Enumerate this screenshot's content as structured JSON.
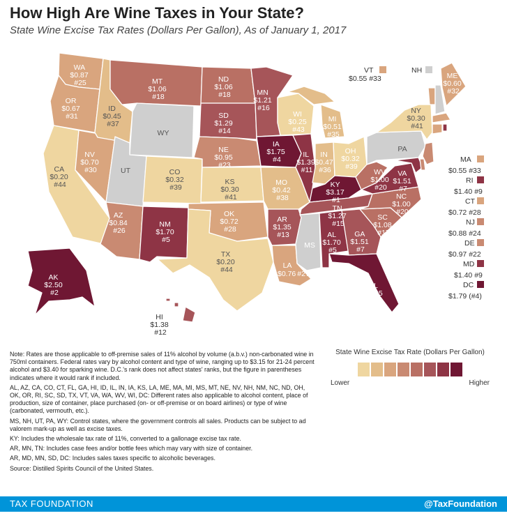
{
  "title": "How High Are Wine Taxes in Your State?",
  "subtitle": "State Wine Excise Tax Rates (Dollars Per Gallon), As of January 1, 2017",
  "colors": {
    "c1": "#efd6a0",
    "c2": "#e3bd8a",
    "c3": "#d9a57e",
    "c4": "#c98a72",
    "c5": "#b97064",
    "c6": "#a65559",
    "c7": "#8e3445",
    "c8": "#6f1733",
    "control": "#cfcfcf"
  },
  "states": {
    "WA": {
      "abbr": "WA",
      "value": "$0.87",
      "rank": "#25"
    },
    "OR": {
      "abbr": "OR",
      "value": "$0.67",
      "rank": "#31"
    },
    "CA": {
      "abbr": "CA",
      "value": "$0.20",
      "rank": "#44"
    },
    "NV": {
      "abbr": "NV",
      "value": "$0.70",
      "rank": "#30"
    },
    "ID": {
      "abbr": "ID",
      "value": "$0.45",
      "rank": "#37"
    },
    "MT": {
      "abbr": "MT",
      "value": "$1.06",
      "rank": "#18"
    },
    "WY": {
      "abbr": "WY"
    },
    "UT": {
      "abbr": "UT"
    },
    "AZ": {
      "abbr": "AZ",
      "value": "$0.84",
      "rank": "#26"
    },
    "CO": {
      "abbr": "CO",
      "value": "$0.32",
      "rank": "#39"
    },
    "NM": {
      "abbr": "NM",
      "value": "$1.70",
      "rank": "#5"
    },
    "ND": {
      "abbr": "ND",
      "value": "$1.06",
      "rank": "#18"
    },
    "SD": {
      "abbr": "SD",
      "value": "$1.29",
      "rank": "#14"
    },
    "NE": {
      "abbr": "NE",
      "value": "$0.95",
      "rank": "#23"
    },
    "KS": {
      "abbr": "KS",
      "value": "$0.30",
      "rank": "#41"
    },
    "OK": {
      "abbr": "OK",
      "value": "$0.72",
      "rank": "#28"
    },
    "TX": {
      "abbr": "TX",
      "value": "$0.20",
      "rank": "#44"
    },
    "MN": {
      "abbr": "MN",
      "value": "$1.21",
      "rank": "#16"
    },
    "IA": {
      "abbr": "IA",
      "value": "$1.75",
      "rank": "#4"
    },
    "MO": {
      "abbr": "MO",
      "value": "$0.42",
      "rank": "#38"
    },
    "AR": {
      "abbr": "AR",
      "value": "$1.35",
      "rank": "#13"
    },
    "LA": {
      "abbr": "LA",
      "value": "$0.76",
      "rank": "#27"
    },
    "WI": {
      "abbr": "WI",
      "value": "$0.25",
      "rank": "#43"
    },
    "IL": {
      "abbr": "IL",
      "value": "$1.39",
      "rank": "#11"
    },
    "MI": {
      "abbr": "MI",
      "value": "$0.51",
      "rank": "#35"
    },
    "IN": {
      "abbr": "IN",
      "value": "$0.47",
      "rank": "#36"
    },
    "OH": {
      "abbr": "OH",
      "value": "$0.32",
      "rank": "#39"
    },
    "KY": {
      "abbr": "KY",
      "value": "$3.17",
      "rank": "#1"
    },
    "TN": {
      "abbr": "TN",
      "value": "$1.27",
      "rank": "#15"
    },
    "MS": {
      "abbr": "MS"
    },
    "AL": {
      "abbr": "AL",
      "value": "$1.70",
      "rank": "#5"
    },
    "GA": {
      "abbr": "GA",
      "value": "$1.51",
      "rank": "#7"
    },
    "FL": {
      "abbr": "FL",
      "value": "$2.25",
      "rank": "#3"
    },
    "SC": {
      "abbr": "SC",
      "value": "$1.08",
      "rank": "#17"
    },
    "NC": {
      "abbr": "NC",
      "value": "$1.00",
      "rank": "#20"
    },
    "VA": {
      "abbr": "VA",
      "value": "$1.51",
      "rank": "#7"
    },
    "WV": {
      "abbr": "WV",
      "value": "$1.00",
      "rank": "#20"
    },
    "PA": {
      "abbr": "PA"
    },
    "NY": {
      "abbr": "NY",
      "value": "$0.30",
      "rank": "#41"
    },
    "ME": {
      "abbr": "ME",
      "value": "$0.60",
      "rank": "#32"
    },
    "AK": {
      "abbr": "AK",
      "value": "$2.50",
      "rank": "#2"
    },
    "HI": {
      "abbr": "HI",
      "value": "$1.38",
      "rank": "#12"
    }
  },
  "callouts": {
    "VT": {
      "abbr": "VT",
      "text": "$0.55 #33"
    },
    "NH": {
      "abbr": "NH"
    },
    "MA": {
      "abbr": "MA",
      "text": "$0.55 #33"
    },
    "RI": {
      "abbr": "RI",
      "text": "$1.40 #9"
    },
    "CT": {
      "abbr": "CT",
      "text": "$0.72 #28"
    },
    "NJ": {
      "abbr": "NJ",
      "text": "$0.88 #24"
    },
    "DE": {
      "abbr": "DE",
      "text": "$0.97 #22"
    },
    "MD": {
      "abbr": "MD",
      "text": "$1.40 #9"
    },
    "DC": {
      "abbr": "DC",
      "text": "$1.79 (#4)"
    }
  },
  "notes": {
    "n1": "Note: Rates are those applicable to off-premise sales of 11% alcohol by volume (a.b.v.) non-carbonated wine in 750ml containers. Federal rates vary by alcohol content and type of wine, ranging up to $3.15 for 21-24 percent alcohol and $3.40 for sparking wine. D.C.'s rank does not affect states' ranks, but the figure in parentheses indicates where it would rank if included.",
    "n2": "AL, AZ, CA, CO, CT, FL, GA, HI, ID, IL, IN, IA, KS, LA, ME, MA, MI, MS, MT, NE, NV, NH, NM, NC, ND, OH, OK, OR, RI, SC, SD, TX, VT, VA, WA, WV, WI, DC: Different rates also applicable to alcohol content, place of production, size of container, place purchased (on- or off-premise or on board airlines) or type of wine (carbonated, vermouth, etc.).",
    "n3": "MS, NH, UT, PA, WY: Control states, where the government controls all sales. Products can be subject to ad valorem mark-up as well as excise taxes.",
    "n4": "KY: Includes the wholesale tax rate of 11%, converted to a gallonage excise tax rate.",
    "n5": "AR, MN, TN: Includes case fees and/or bottle fees which may vary with size of container.",
    "n6": "AR, MD, MN, SD, DC: Includes sales taxes specific to alcoholic beverages.",
    "source": "Source: Distilled Spirits Council of the United States."
  },
  "legend": {
    "title": "State Wine Excise Tax Rate (Dollars Per Gallon)",
    "lower": "Lower",
    "higher": "Higher",
    "colors": [
      "#efd6a0",
      "#e3bd8a",
      "#d9a57e",
      "#c98a72",
      "#b97064",
      "#a65559",
      "#8e3445",
      "#6f1733"
    ]
  },
  "footer": {
    "brand": "TAX FOUNDATION",
    "handle": "@TaxFoundation"
  }
}
